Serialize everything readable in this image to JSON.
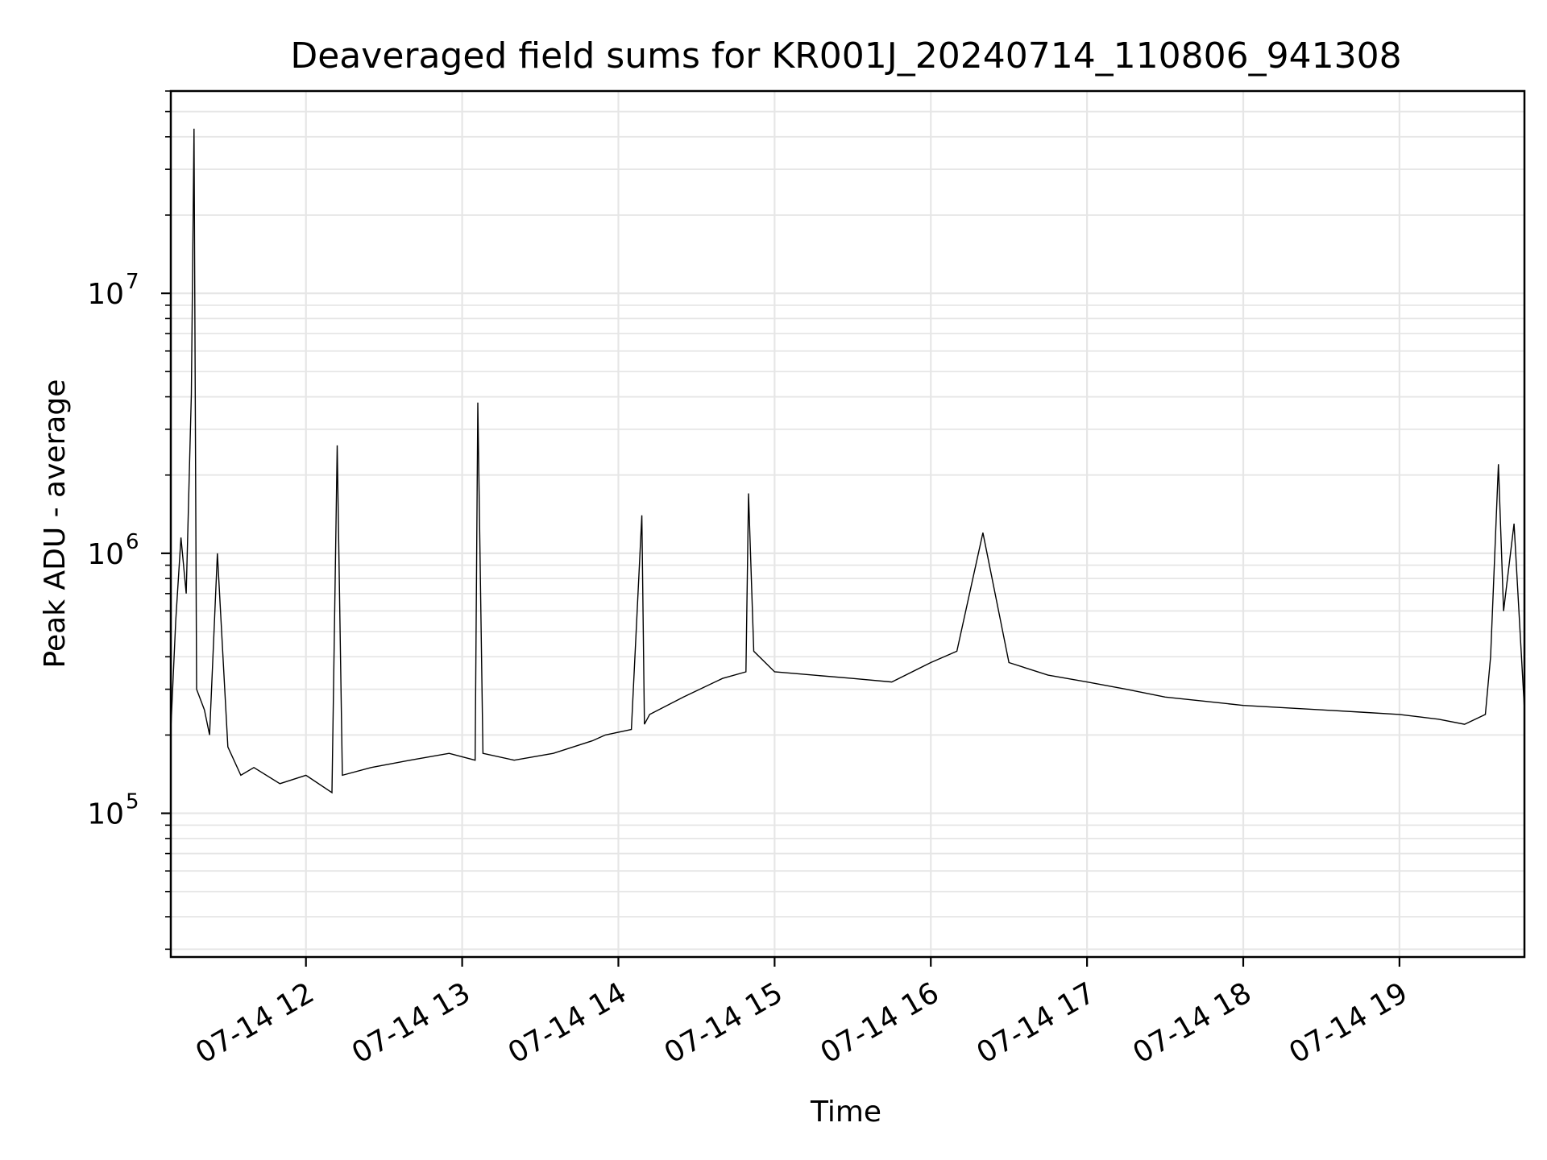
{
  "chart_data": {
    "type": "line",
    "title": "Deaveraged field sums for KR001J_20240714_110806_941308",
    "xlabel": "Time",
    "ylabel": "Peak ADU - average",
    "yscale": "log",
    "ylim": [
      28000,
      60000000
    ],
    "xlim": [
      "2024-07-14 11:08:06",
      "2024-07-14 19:48:00"
    ],
    "x_ticks": [
      "07-14 12",
      "07-14 13",
      "07-14 14",
      "07-14 15",
      "07-14 16",
      "07-14 17",
      "07-14 18",
      "07-14 19"
    ],
    "y_ticks": [
      {
        "base": "10",
        "exp": "5"
      },
      {
        "base": "10",
        "exp": "6"
      },
      {
        "base": "10",
        "exp": "7"
      }
    ],
    "grid": true,
    "line_color": "#000000",
    "series": [
      {
        "x": [
          "2024-07-14 11:08",
          "2024-07-14 11:10",
          "2024-07-14 11:12",
          "2024-07-14 11:14",
          "2024-07-14 11:16",
          "2024-07-14 11:17",
          "2024-07-14 11:18",
          "2024-07-14 11:21",
          "2024-07-14 11:23",
          "2024-07-14 11:26",
          "2024-07-14 11:30",
          "2024-07-14 11:35",
          "2024-07-14 11:40",
          "2024-07-14 11:50",
          "2024-07-14 12:00",
          "2024-07-14 12:10",
          "2024-07-14 12:12",
          "2024-07-14 12:14",
          "2024-07-14 12:25",
          "2024-07-14 12:40",
          "2024-07-14 12:55",
          "2024-07-14 13:05",
          "2024-07-14 13:06",
          "2024-07-14 13:08",
          "2024-07-14 13:20",
          "2024-07-14 13:35",
          "2024-07-14 13:50",
          "2024-07-14 13:55",
          "2024-07-14 14:05",
          "2024-07-14 14:09",
          "2024-07-14 14:10",
          "2024-07-14 14:12",
          "2024-07-14 14:25",
          "2024-07-14 14:40",
          "2024-07-14 14:49",
          "2024-07-14 14:50",
          "2024-07-14 14:52",
          "2024-07-14 15:00",
          "2024-07-14 15:15",
          "2024-07-14 15:30",
          "2024-07-14 15:45",
          "2024-07-14 16:00",
          "2024-07-14 16:10",
          "2024-07-14 16:20",
          "2024-07-14 16:30",
          "2024-07-14 16:45",
          "2024-07-14 17:00",
          "2024-07-14 17:15",
          "2024-07-14 17:30",
          "2024-07-14 17:45",
          "2024-07-14 18:00",
          "2024-07-14 18:15",
          "2024-07-14 18:30",
          "2024-07-14 18:45",
          "2024-07-14 19:00",
          "2024-07-14 19:15",
          "2024-07-14 19:25",
          "2024-07-14 19:33",
          "2024-07-14 19:35",
          "2024-07-14 19:38",
          "2024-07-14 19:40",
          "2024-07-14 19:44",
          "2024-07-14 19:48"
        ],
        "y": [
          200000,
          550000,
          1150000,
          700000,
          4100000,
          43000000,
          300000,
          250000,
          200000,
          1000000,
          180000,
          140000,
          150000,
          130000,
          140000,
          120000,
          2600000,
          140000,
          150000,
          160000,
          170000,
          160000,
          3800000,
          170000,
          160000,
          170000,
          190000,
          200000,
          210000,
          1400000,
          220000,
          240000,
          280000,
          330000,
          350000,
          1700000,
          420000,
          350000,
          340000,
          330000,
          320000,
          380000,
          420000,
          1200000,
          380000,
          340000,
          320000,
          300000,
          280000,
          270000,
          260000,
          255000,
          250000,
          245000,
          240000,
          230000,
          220000,
          240000,
          400000,
          2200000,
          600000,
          1300000,
          250000
        ]
      }
    ]
  }
}
